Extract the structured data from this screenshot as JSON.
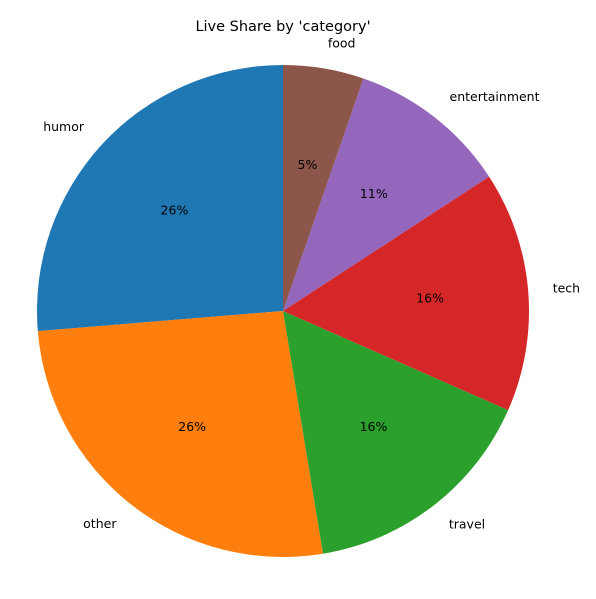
{
  "chart_data": {
    "type": "pie",
    "title": "Live Share by 'category'",
    "start_angle_deg": 90,
    "direction": "counterclockwise",
    "percent_format": "integer-percent",
    "slices": [
      {
        "label": "humor",
        "value": 26.3,
        "percent_label": "26%",
        "color": "#1f77b4"
      },
      {
        "label": "other",
        "value": 26.3,
        "percent_label": "26%",
        "color": "#ff7f0e"
      },
      {
        "label": "travel",
        "value": 15.8,
        "percent_label": "16%",
        "color": "#2ca02c"
      },
      {
        "label": "tech",
        "value": 15.8,
        "percent_label": "16%",
        "color": "#d62728"
      },
      {
        "label": "entertainment",
        "value": 10.5,
        "percent_label": "11%",
        "color": "#9467bd"
      },
      {
        "label": "food",
        "value": 5.3,
        "percent_label": "5%",
        "color": "#8c564b"
      }
    ]
  }
}
